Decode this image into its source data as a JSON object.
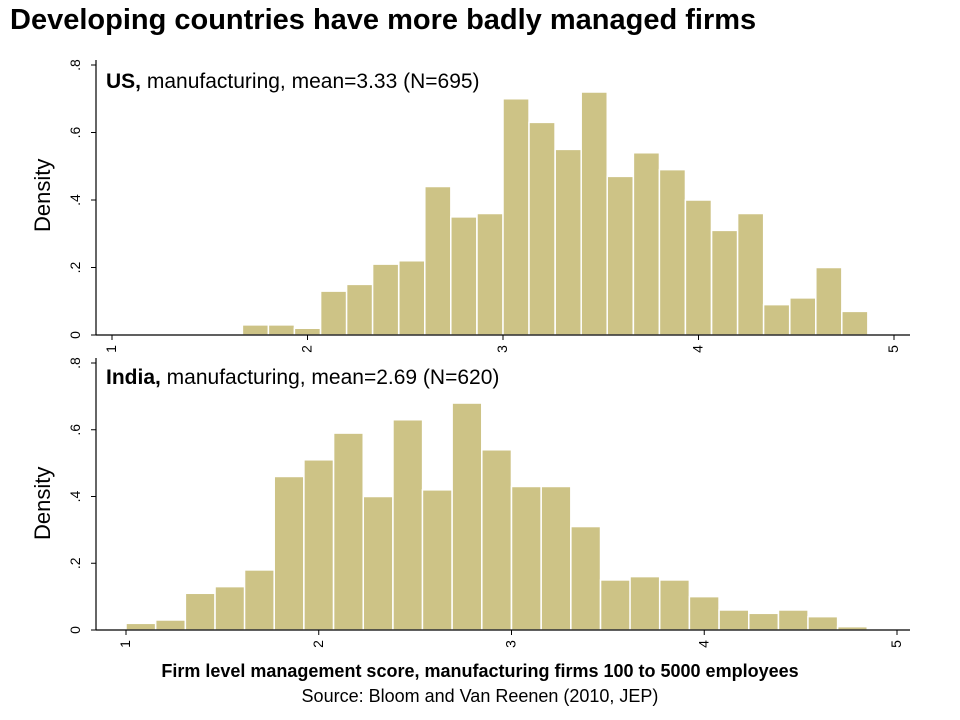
{
  "title": "Developing countries have more badly managed firms",
  "xlabel": "Firm level management score, manufacturing firms 100 to 5000 employees",
  "source": "Source: Bloom and Van Reenen (2010, JEP)",
  "bar_color": "#cdc386",
  "chart_data": [
    {
      "type": "bar",
      "panel_label_bold": "US,",
      "panel_label_rest": " manufacturing, mean=3.33 (N=695)",
      "ylabel": "Density",
      "xlim": [
        1,
        5
      ],
      "ylim": [
        0,
        0.8
      ],
      "xticks": [
        "1",
        "2",
        "3",
        "4",
        "5"
      ],
      "yticks": [
        "0",
        ".2",
        ".4",
        ".6",
        ".8"
      ],
      "bin_width": 0.1333,
      "bin_start": [
        1.667,
        1.8,
        1.933,
        2.067,
        2.2,
        2.333,
        2.467,
        2.6,
        2.733,
        2.867,
        3.0,
        3.133,
        3.267,
        3.4,
        3.533,
        3.667,
        3.8,
        3.933,
        4.067,
        4.2,
        4.333,
        4.467,
        4.6,
        4.733
      ],
      "values": [
        0.03,
        0.03,
        0.02,
        0.13,
        0.15,
        0.21,
        0.22,
        0.44,
        0.35,
        0.36,
        0.7,
        0.63,
        0.55,
        0.72,
        0.47,
        0.54,
        0.49,
        0.4,
        0.31,
        0.36,
        0.09,
        0.11,
        0.2,
        0.07
      ]
    },
    {
      "type": "bar",
      "panel_label_bold": "India,",
      "panel_label_rest": " manufacturing, mean=2.69 (N=620)",
      "ylabel": "Density",
      "xlim": [
        1,
        5
      ],
      "ylim": [
        0,
        0.8
      ],
      "xticks": [
        "1",
        "2",
        "3",
        "4",
        "5"
      ],
      "yticks": [
        "0",
        ".2",
        ".4",
        ".6",
        ".8"
      ],
      "bin_width": 0.1538,
      "bin_start": [
        1.0,
        1.154,
        1.308,
        1.462,
        1.615,
        1.769,
        1.923,
        2.077,
        2.231,
        2.385,
        2.538,
        2.692,
        2.846,
        3.0,
        3.154,
        3.308,
        3.462,
        3.615,
        3.769,
        3.923,
        4.077,
        4.231,
        4.385,
        4.538,
        4.692
      ],
      "values": [
        0.02,
        0.03,
        0.11,
        0.13,
        0.18,
        0.46,
        0.51,
        0.59,
        0.4,
        0.63,
        0.42,
        0.68,
        0.54,
        0.43,
        0.43,
        0.31,
        0.15,
        0.16,
        0.15,
        0.1,
        0.06,
        0.05,
        0.06,
        0.04,
        0.01
      ]
    }
  ]
}
